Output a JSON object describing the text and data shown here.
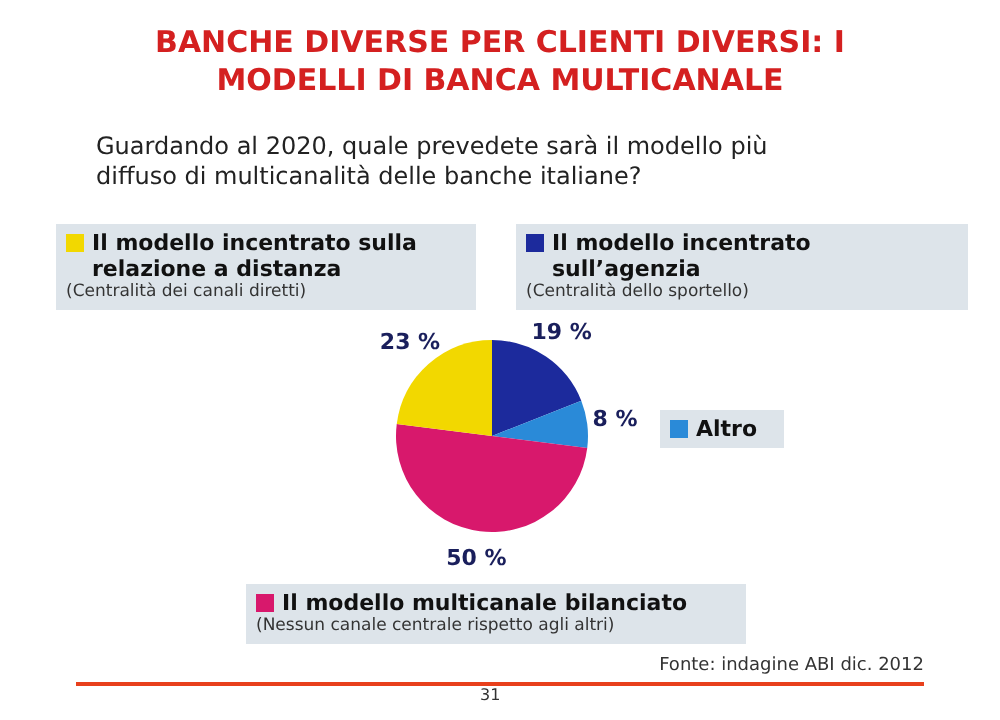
{
  "chart_data": {
    "type": "pie",
    "title": "BANCHE DIVERSE PER CLIENTI DIVERSI: I MODELLI DI BANCA MULTICANALE",
    "subtitle": "Guardando al 2020, quale prevedete sarà il modello più diffuso di multicanalità delle banche italiane?",
    "categories": [
      "Il modello incentrato sull’agenzia",
      "Altro",
      "Il modello multicanale bilanciato",
      "Il modello incentrato sulla relazione a distanza"
    ],
    "values": [
      19,
      8,
      50,
      23
    ],
    "colors": [
      "#1c2a9c",
      "#2a8ad8",
      "#d8186c",
      "#f2d800"
    ],
    "value_labels": [
      "19 %",
      "8 %",
      "50 %",
      "23 %"
    ],
    "legend": "top",
    "annotations": [
      "(Centralità dello sportello)",
      "(Nessun canale centrale rispetto agli altri)",
      "(Centralità dei canali diretti)",
      "Fonte: indagine ABI dic. 2012",
      "31"
    ]
  }
}
